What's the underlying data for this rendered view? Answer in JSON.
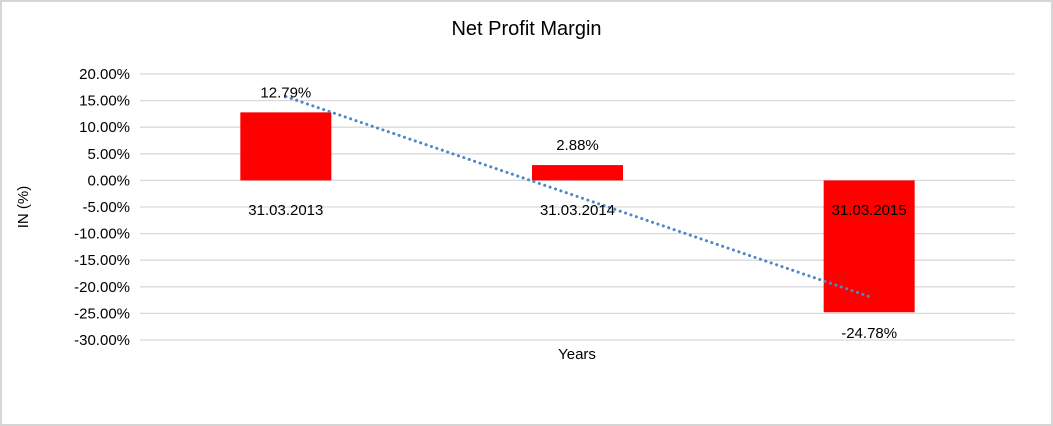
{
  "window": {
    "background": "#ffffff",
    "border_color": "#d6d6d6"
  },
  "chart_data": {
    "type": "bar",
    "title": "Net Profit Margin",
    "xlabel": "Years",
    "ylabel": "IN (%)",
    "categories": [
      "31.03.2013",
      "31.03.2014",
      "31.03.2015"
    ],
    "values": [
      12.79,
      2.88,
      -24.78
    ],
    "data_labels": [
      "12.79%",
      "2.88%",
      "-24.78%"
    ],
    "y_tick_values": [
      20,
      15,
      10,
      5,
      0,
      -5,
      -10,
      -15,
      -20,
      -25,
      -30
    ],
    "y_tick_labels": [
      "20.00%",
      "15.00%",
      "10.00%",
      "5.00%",
      "0.00%",
      "-5.00%",
      "-10.00%",
      "-15.00%",
      "-20.00%",
      "-25.00%",
      "-30.00%"
    ],
    "ylim": [
      -30,
      20
    ],
    "grid": true,
    "legend": false,
    "bar_color": "#ff0000",
    "gridline_color": "#d9d9d9",
    "trendline": {
      "type": "linear",
      "style": "dotted",
      "color": "#4e86c6"
    }
  }
}
